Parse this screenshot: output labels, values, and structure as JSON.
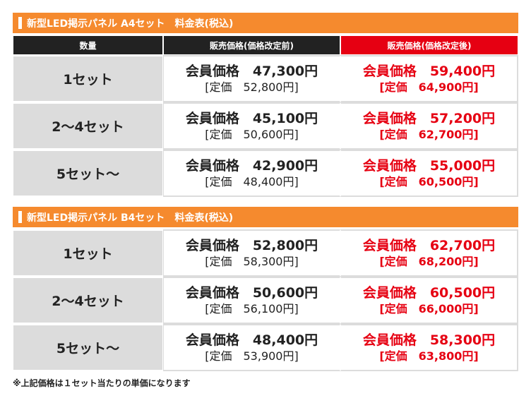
{
  "tables": [
    {
      "title": "新型LED掲示パネル A4セット　料金表(税込)",
      "headers": {
        "qty": "数量",
        "before": "販売価格(価格改定前)",
        "after": "販売価格(価格改定後)"
      },
      "rows": [
        {
          "qty": "1セット",
          "before_member": "会員価格　47,300円",
          "before_list": "[定価　52,800円]",
          "after_member": "会員価格　59,400円",
          "after_list": "[定価　64,900円]"
        },
        {
          "qty": "2～4セット",
          "before_member": "会員価格　45,100円",
          "before_list": "[定価　50,600円]",
          "after_member": "会員価格　57,200円",
          "after_list": "[定価　62,700円]"
        },
        {
          "qty": "5セット～",
          "before_member": "会員価格　42,900円",
          "before_list": "[定価　48,400円]",
          "after_member": "会員価格　55,000円",
          "after_list": "[定価　60,500円]"
        }
      ]
    },
    {
      "title": "新型LED掲示パネル B4セット　料金表(税込)",
      "rows": [
        {
          "qty": "1セット",
          "before_member": "会員価格　52,800円",
          "before_list": "[定価　58,300円]",
          "after_member": "会員価格　62,700円",
          "after_list": "[定価　68,200円]"
        },
        {
          "qty": "2～4セット",
          "before_member": "会員価格　50,600円",
          "before_list": "[定価　56,100円]",
          "after_member": "会員価格　60,500円",
          "after_list": "[定価　66,000円]"
        },
        {
          "qty": "5セット～",
          "before_member": "会員価格　48,400円",
          "before_list": "[定価　53,900円]",
          "after_member": "会員価格　58,300円",
          "after_list": "[定価　63,800円]"
        }
      ]
    }
  ],
  "note": "※上記価格は１セット当たりの単価になります",
  "colors": {
    "banner": "#f58a2e",
    "header_dark": "#222222",
    "header_red": "#e60012",
    "qty_cell": "#dcdcdc",
    "price_after": "#e60012"
  }
}
